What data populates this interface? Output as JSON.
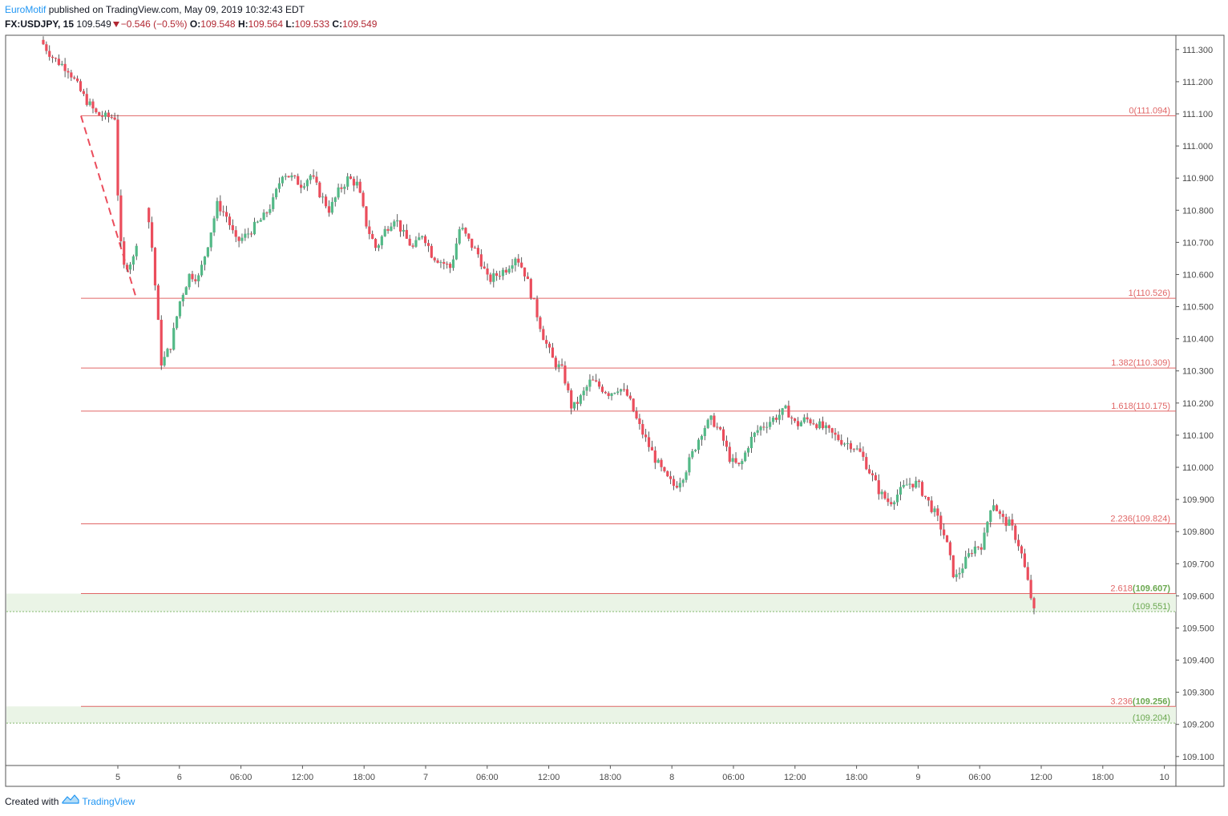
{
  "header": {
    "author": "EuroMotif",
    "published_text": " published on TradingView.com, May 09, 2019 10:32:43 EDT",
    "symbol": "FX:USDJPY, 15",
    "last_price": "109.549",
    "change": "−0.546 (−0.5%)",
    "open_label": "O:",
    "open": "109.548",
    "high_label": "H:",
    "high": "109.564",
    "low_label": "L:",
    "low": "109.533",
    "close_label": "C:",
    "close": "109.549"
  },
  "footer": {
    "created_with": "Created with",
    "brand": "TradingView",
    "logo_icon": "tradingview-logo-icon"
  },
  "colors": {
    "up": "#53b987",
    "down": "#eb4d5c",
    "fib_line": "#e06666",
    "fib_label": "#e06666",
    "zone_fill": "#eaf4e6",
    "zone_label": "#6aa84f",
    "axis_text": "#4a4a4a",
    "border": "#555555"
  },
  "chart_data": {
    "type": "candlestick",
    "symbol": "FX:USDJPY",
    "interval": "15",
    "y_axis": {
      "position": "right",
      "ticks": [
        "111.300",
        "111.200",
        "111.100",
        "111.000",
        "110.900",
        "110.800",
        "110.700",
        "110.600",
        "110.500",
        "110.400",
        "110.300",
        "110.200",
        "110.100",
        "110.000",
        "109.900",
        "109.800",
        "109.700",
        "109.600",
        "109.500",
        "109.400",
        "109.300",
        "109.200",
        "109.100"
      ],
      "ylim": [
        109.07,
        111.33
      ]
    },
    "x_axis": {
      "ticks": [
        "5",
        "6",
        "06:00",
        "12:00",
        "18:00",
        "7",
        "06:00",
        "12:00",
        "18:00",
        "8",
        "06:00",
        "12:00",
        "18:00",
        "9",
        "06:00",
        "12:00",
        "18:00",
        "10"
      ]
    },
    "fib_extension_levels": [
      {
        "ratio": "0",
        "price": "111.094"
      },
      {
        "ratio": "1",
        "price": "110.526"
      },
      {
        "ratio": "1.382",
        "price": "110.309"
      },
      {
        "ratio": "1.618",
        "price": "110.175"
      },
      {
        "ratio": "2.236",
        "price": "109.824"
      },
      {
        "ratio": "2.618",
        "price": "109.607"
      },
      {
        "ratio": "3.236",
        "price": "109.256"
      }
    ],
    "zones": [
      {
        "top": "109.607",
        "bottom": "109.551"
      },
      {
        "top": "109.256",
        "bottom": "109.204"
      }
    ],
    "trend_line": {
      "from_price": 111.094,
      "to_price": 110.526,
      "style": "dashed"
    },
    "price_path": [
      [
        0,
        111.33
      ],
      [
        3,
        111.27
      ],
      [
        6,
        111.24
      ],
      [
        9,
        111.16
      ],
      [
        12,
        111.1
      ],
      [
        14,
        111.09
      ],
      [
        16,
        111.09
      ],
      [
        17,
        110.72
      ],
      [
        18,
        110.62
      ],
      [
        20,
        110.65
      ],
      [
        22,
        110.82
      ],
      [
        23,
        110.8
      ],
      [
        24,
        110.68
      ],
      [
        25,
        110.5
      ],
      [
        26,
        110.32
      ],
      [
        28,
        110.38
      ],
      [
        30,
        110.52
      ],
      [
        32,
        110.6
      ],
      [
        34,
        110.59
      ],
      [
        36,
        110.7
      ],
      [
        38,
        110.82
      ],
      [
        40,
        110.78
      ],
      [
        42,
        110.7
      ],
      [
        44,
        110.72
      ],
      [
        46,
        110.75
      ],
      [
        48,
        110.78
      ],
      [
        50,
        110.83
      ],
      [
        52,
        110.92
      ],
      [
        54,
        110.9
      ],
      [
        56,
        110.88
      ],
      [
        58,
        110.91
      ],
      [
        60,
        110.85
      ],
      [
        62,
        110.8
      ],
      [
        64,
        110.86
      ],
      [
        66,
        110.9
      ],
      [
        68,
        110.88
      ],
      [
        70,
        110.75
      ],
      [
        72,
        110.68
      ],
      [
        74,
        110.74
      ],
      [
        76,
        110.78
      ],
      [
        78,
        110.72
      ],
      [
        80,
        110.68
      ],
      [
        82,
        110.73
      ],
      [
        84,
        110.66
      ],
      [
        86,
        110.64
      ],
      [
        88,
        110.62
      ],
      [
        90,
        110.75
      ],
      [
        92,
        110.7
      ],
      [
        94,
        110.66
      ],
      [
        96,
        110.58
      ],
      [
        98,
        110.6
      ],
      [
        100,
        110.62
      ],
      [
        102,
        110.66
      ],
      [
        104,
        110.6
      ],
      [
        106,
        110.5
      ],
      [
        108,
        110.4
      ],
      [
        110,
        110.33
      ],
      [
        112,
        110.3
      ],
      [
        114,
        110.18
      ],
      [
        116,
        110.22
      ],
      [
        118,
        110.27
      ],
      [
        120,
        110.25
      ],
      [
        122,
        110.23
      ],
      [
        124,
        110.25
      ],
      [
        126,
        110.22
      ],
      [
        128,
        110.14
      ],
      [
        130,
        110.08
      ],
      [
        132,
        110.02
      ],
      [
        134,
        109.97
      ],
      [
        136,
        109.94
      ],
      [
        138,
        109.98
      ],
      [
        140,
        110.05
      ],
      [
        142,
        110.12
      ],
      [
        144,
        110.15
      ],
      [
        146,
        110.1
      ],
      [
        148,
        110.02
      ],
      [
        150,
        110.0
      ],
      [
        152,
        110.08
      ],
      [
        154,
        110.12
      ],
      [
        156,
        110.14
      ],
      [
        158,
        110.16
      ],
      [
        160,
        110.18
      ],
      [
        162,
        110.13
      ],
      [
        164,
        110.15
      ],
      [
        166,
        110.14
      ],
      [
        168,
        110.12
      ],
      [
        170,
        110.1
      ],
      [
        172,
        110.08
      ],
      [
        174,
        110.07
      ],
      [
        176,
        110.04
      ],
      [
        178,
        109.98
      ],
      [
        180,
        109.92
      ],
      [
        182,
        109.89
      ],
      [
        184,
        109.92
      ],
      [
        186,
        109.95
      ],
      [
        188,
        109.95
      ],
      [
        190,
        109.9
      ],
      [
        192,
        109.85
      ],
      [
        194,
        109.78
      ],
      [
        196,
        109.65
      ],
      [
        198,
        109.7
      ],
      [
        200,
        109.75
      ],
      [
        202,
        109.76
      ],
      [
        204,
        109.9
      ],
      [
        206,
        109.84
      ],
      [
        208,
        109.82
      ],
      [
        210,
        109.75
      ],
      [
        212,
        109.62
      ],
      [
        213,
        109.549
      ]
    ]
  }
}
